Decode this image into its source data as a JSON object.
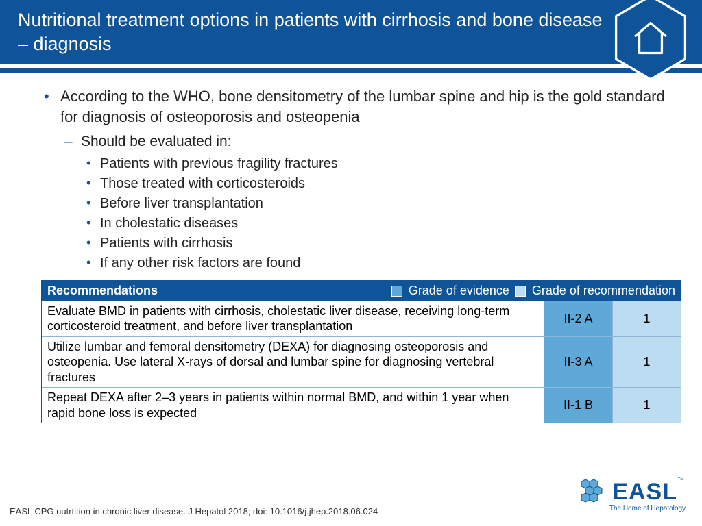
{
  "colors": {
    "brand": "#0f5499",
    "evidence_fill": "#5ea9d8",
    "recommendation_fill": "#bcdcf1",
    "row_border": "#8fb4d6",
    "text": "#232323",
    "white": "#ffffff"
  },
  "title": "Nutritional treatment options in patients with cirrhosis and bone disease – diagnosis",
  "bullets": {
    "main": "According to the WHO, bone densitometry of the lumbar spine and hip is the gold standard for diagnosis of osteoporosis and osteopenia",
    "sub": "Should be evaluated in:",
    "items": [
      "Patients with previous fragility fractures",
      "Those treated with corticosteroids",
      "Before liver transplantation",
      "In cholestatic diseases",
      "Patients with cirrhosis",
      "If any other risk factors are found"
    ]
  },
  "table": {
    "header": {
      "title": "Recommendations",
      "legend_evidence": "Grade of evidence",
      "legend_recommendation": "Grade of recommendation"
    },
    "rows": [
      {
        "text": "Evaluate BMD in patients with cirrhosis, cholestatic liver disease, receiving long-term corticosteroid treatment, and before liver transplantation",
        "grade": "II-2 A",
        "rec": "1"
      },
      {
        "text": "Utilize lumbar and femoral densitometry (DEXA) for diagnosing osteoporosis and osteopenia. Use lateral X-rays of dorsal and lumbar spine for diagnosing vertebral fractures",
        "grade": "II-3 A",
        "rec": "1"
      },
      {
        "text": "Repeat DEXA after 2–3 years in patients within normal BMD, and within 1 year when rapid bone loss is expected",
        "grade": "II-1 B",
        "rec": "1"
      }
    ]
  },
  "citation": "EASL CPG nutrtition in chronic liver disease. J Hepatol 2018; doi: 10.1016/j.jhep.2018.06.024",
  "logo": {
    "name": "EASL",
    "tagline": "The Home of Hepatology",
    "tm": "™"
  }
}
